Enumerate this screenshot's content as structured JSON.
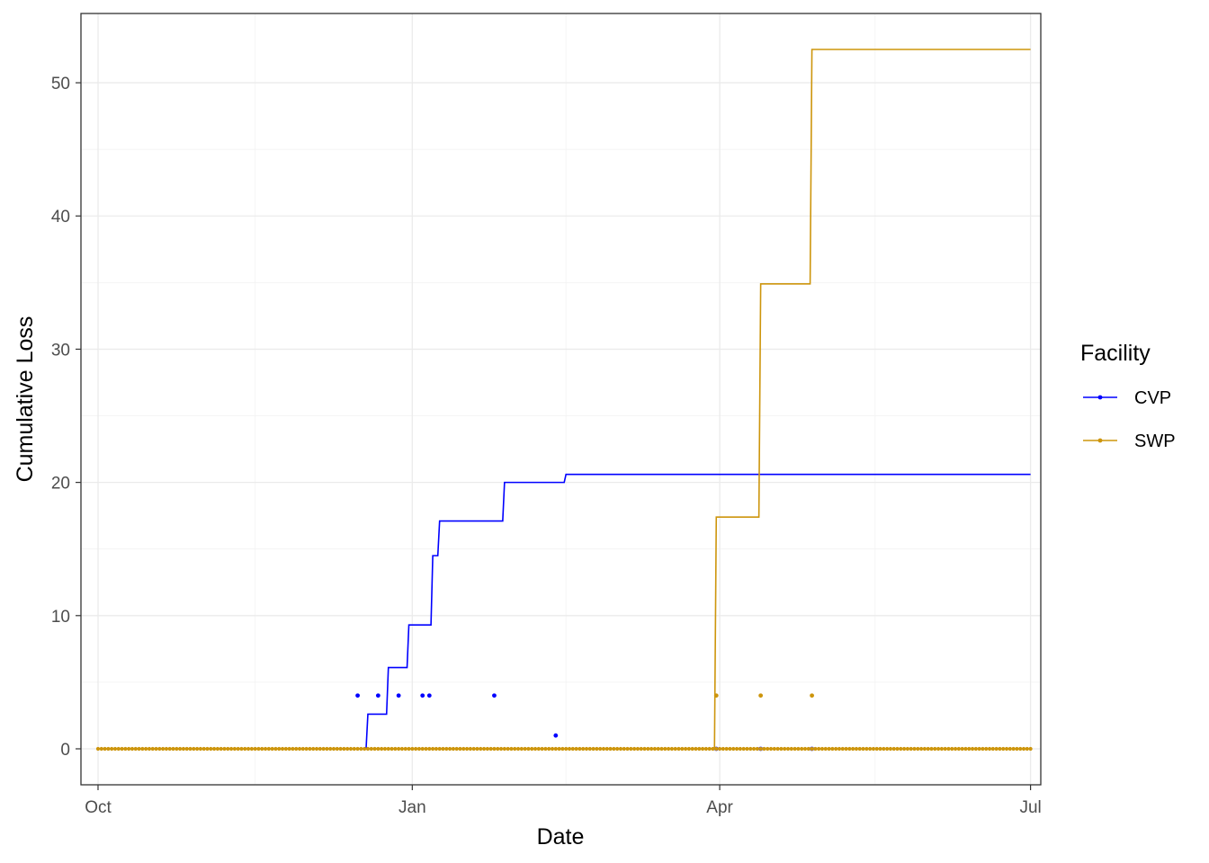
{
  "chart_data": {
    "type": "line",
    "xlabel": "Date",
    "ylabel": "Cumulative Loss",
    "x_axis": "date",
    "xlim": [
      "2021-09-26",
      "2022-07-04"
    ],
    "ylim": [
      -2.7,
      55.2
    ],
    "x_ticks": [
      {
        "date": "2021-10-01",
        "label": "Oct"
      },
      {
        "date": "2022-01-01",
        "label": "Jan"
      },
      {
        "date": "2022-04-01",
        "label": "Apr"
      },
      {
        "date": "2022-07-01",
        "label": "Jul"
      }
    ],
    "y_ticks": [
      0,
      10,
      20,
      30,
      40,
      50
    ],
    "grid": true,
    "legend": {
      "title": "Facility",
      "position": "right"
    },
    "series": [
      {
        "name": "CVP",
        "color": "#0000ff",
        "cumulative_steps": [
          {
            "x": "2021-10-01",
            "y": 0
          },
          {
            "x": "2021-12-19",
            "y": 2.6
          },
          {
            "x": "2021-12-25",
            "y": 6.1
          },
          {
            "x": "2021-12-31",
            "y": 9.3
          },
          {
            "x": "2022-01-07",
            "y": 14.5
          },
          {
            "x": "2022-01-09",
            "y": 17.1
          },
          {
            "x": "2022-01-28",
            "y": 20.0
          },
          {
            "x": "2022-02-15",
            "y": 20.6
          },
          {
            "x": "2022-07-01",
            "y": 20.6
          }
        ],
        "daily_points": [
          {
            "x": "2021-12-16",
            "y": 4
          },
          {
            "x": "2021-12-22",
            "y": 4
          },
          {
            "x": "2021-12-28",
            "y": 4
          },
          {
            "x": "2022-01-04",
            "y": 4
          },
          {
            "x": "2022-01-06",
            "y": 4
          },
          {
            "x": "2022-01-25",
            "y": 4
          },
          {
            "x": "2022-02-12",
            "y": 1
          },
          {
            "x": "2022-03-31",
            "y": 0
          },
          {
            "x": "2022-04-13",
            "y": 0
          },
          {
            "x": "2022-04-28",
            "y": 0
          }
        ]
      },
      {
        "name": "SWP",
        "color": "#cd950c",
        "cumulative_steps": [
          {
            "x": "2021-10-01",
            "y": 0
          },
          {
            "x": "2022-03-31",
            "y": 17.4
          },
          {
            "x": "2022-04-13",
            "y": 34.9
          },
          {
            "x": "2022-04-28",
            "y": 52.5
          },
          {
            "x": "2022-07-01",
            "y": 52.5
          }
        ],
        "daily_points": [
          {
            "x": "2022-03-31",
            "y": 4
          },
          {
            "x": "2022-04-13",
            "y": 4
          },
          {
            "x": "2022-04-28",
            "y": 4
          }
        ],
        "baseline_points": {
          "from": "2021-10-01",
          "to": "2022-07-01",
          "y": 0
        }
      }
    ]
  }
}
